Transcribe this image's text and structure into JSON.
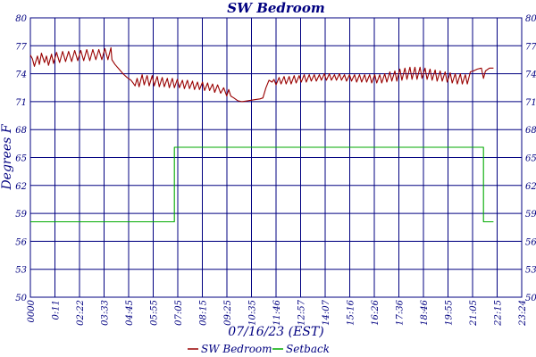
{
  "chart_data": {
    "type": "line",
    "title": "SW Bedroom",
    "xlabel": "07/16/23 (EST)",
    "ylabel": "Degrees F",
    "ylim": [
      50,
      80
    ],
    "y_ticks": [
      "50",
      "53",
      "56",
      "59",
      "62",
      "65",
      "68",
      "71",
      "74",
      "77",
      "80"
    ],
    "x_ticks": [
      "0000",
      "0:11",
      "02:22",
      "03:33",
      "04:45",
      "05:55",
      "07:05",
      "08:15",
      "09:25",
      "10:35",
      "11:46",
      "12:57",
      "14:07",
      "15:16",
      "16:26",
      "17:36",
      "18:46",
      "19:55",
      "21:05",
      "22:15",
      "23:24"
    ],
    "x_unit": "hours",
    "xlim": [
      0,
      24.4
    ],
    "grid": true,
    "legend_position": "bottom",
    "series": [
      {
        "name": "SW Bedroom",
        "color": "#990000",
        "points": [
          [
            0.0,
            76.0
          ],
          [
            0.1,
            75.6
          ],
          [
            0.2,
            74.8
          ],
          [
            0.35,
            75.9
          ],
          [
            0.45,
            75.0
          ],
          [
            0.55,
            76.2
          ],
          [
            0.7,
            75.2
          ],
          [
            0.8,
            75.9
          ],
          [
            0.9,
            74.9
          ],
          [
            1.05,
            76.1
          ],
          [
            1.15,
            75.1
          ],
          [
            1.3,
            76.3
          ],
          [
            1.45,
            75.2
          ],
          [
            1.6,
            76.4
          ],
          [
            1.75,
            75.3
          ],
          [
            1.9,
            76.4
          ],
          [
            2.05,
            75.3
          ],
          [
            2.2,
            76.5
          ],
          [
            2.35,
            75.4
          ],
          [
            2.5,
            76.5
          ],
          [
            2.65,
            75.4
          ],
          [
            2.8,
            76.6
          ],
          [
            2.95,
            75.4
          ],
          [
            3.1,
            76.6
          ],
          [
            3.25,
            75.5
          ],
          [
            3.4,
            76.6
          ],
          [
            3.55,
            75.5
          ],
          [
            3.7,
            76.7
          ],
          [
            3.85,
            75.5
          ],
          [
            4.0,
            76.8
          ],
          [
            4.05,
            75.5
          ],
          [
            4.2,
            75.0
          ],
          [
            4.4,
            74.5
          ],
          [
            4.6,
            74.0
          ],
          [
            4.8,
            73.6
          ],
          [
            5.0,
            73.3
          ],
          [
            5.1,
            73.0
          ],
          [
            5.2,
            72.7
          ],
          [
            5.3,
            73.5
          ],
          [
            5.4,
            72.6
          ],
          [
            5.55,
            73.9
          ],
          [
            5.65,
            72.8
          ],
          [
            5.8,
            73.8
          ],
          [
            5.9,
            72.7
          ],
          [
            6.05,
            73.8
          ],
          [
            6.15,
            72.7
          ],
          [
            6.3,
            73.7
          ],
          [
            6.4,
            72.6
          ],
          [
            6.55,
            73.6
          ],
          [
            6.65,
            72.6
          ],
          [
            6.8,
            73.5
          ],
          [
            6.9,
            72.5
          ],
          [
            7.05,
            73.5
          ],
          [
            7.15,
            72.5
          ],
          [
            7.3,
            73.4
          ],
          [
            7.4,
            72.5
          ],
          [
            7.55,
            73.3
          ],
          [
            7.65,
            72.4
          ],
          [
            7.8,
            73.3
          ],
          [
            7.9,
            72.4
          ],
          [
            8.05,
            73.2
          ],
          [
            8.15,
            72.3
          ],
          [
            8.3,
            73.1
          ],
          [
            8.4,
            72.3
          ],
          [
            8.55,
            73.1
          ],
          [
            8.65,
            72.2
          ],
          [
            8.8,
            73.0
          ],
          [
            8.9,
            72.2
          ],
          [
            9.05,
            72.9
          ],
          [
            9.15,
            72.0
          ],
          [
            9.3,
            72.8
          ],
          [
            9.45,
            71.9
          ],
          [
            9.6,
            72.5
          ],
          [
            9.75,
            71.6
          ],
          [
            9.85,
            72.3
          ],
          [
            9.95,
            71.6
          ],
          [
            10.1,
            71.4
          ],
          [
            10.3,
            71.1
          ],
          [
            10.5,
            71.0
          ],
          [
            10.8,
            71.1
          ],
          [
            11.1,
            71.2
          ],
          [
            11.4,
            71.3
          ],
          [
            11.55,
            71.4
          ],
          [
            11.7,
            72.5
          ],
          [
            11.85,
            73.3
          ],
          [
            12.0,
            73.1
          ],
          [
            12.1,
            73.4
          ],
          [
            12.2,
            72.8
          ],
          [
            12.35,
            73.6
          ],
          [
            12.45,
            72.9
          ],
          [
            12.6,
            73.7
          ],
          [
            12.7,
            72.9
          ],
          [
            12.85,
            73.7
          ],
          [
            12.95,
            72.9
          ],
          [
            13.1,
            73.8
          ],
          [
            13.2,
            73.0
          ],
          [
            13.35,
            73.8
          ],
          [
            13.45,
            73.1
          ],
          [
            13.6,
            73.9
          ],
          [
            13.7,
            73.1
          ],
          [
            13.85,
            73.9
          ],
          [
            13.95,
            73.2
          ],
          [
            14.1,
            73.9
          ],
          [
            14.2,
            73.2
          ],
          [
            14.35,
            73.9
          ],
          [
            14.45,
            73.3
          ],
          [
            14.6,
            74.0
          ],
          [
            14.7,
            73.3
          ],
          [
            14.85,
            74.0
          ],
          [
            14.95,
            73.3
          ],
          [
            15.1,
            73.9
          ],
          [
            15.2,
            73.3
          ],
          [
            15.35,
            74.0
          ],
          [
            15.45,
            73.3
          ],
          [
            15.6,
            73.9
          ],
          [
            15.7,
            73.2
          ],
          [
            15.85,
            73.9
          ],
          [
            15.95,
            73.2
          ],
          [
            16.1,
            73.9
          ],
          [
            16.2,
            73.1
          ],
          [
            16.35,
            73.9
          ],
          [
            16.45,
            73.1
          ],
          [
            16.6,
            73.9
          ],
          [
            16.7,
            73.1
          ],
          [
            16.85,
            73.9
          ],
          [
            16.95,
            73.0
          ],
          [
            17.1,
            73.9
          ],
          [
            17.2,
            73.0
          ],
          [
            17.35,
            73.9
          ],
          [
            17.45,
            73.0
          ],
          [
            17.6,
            74.0
          ],
          [
            17.7,
            73.1
          ],
          [
            17.85,
            74.2
          ],
          [
            17.95,
            73.2
          ],
          [
            18.1,
            74.3
          ],
          [
            18.2,
            73.2
          ],
          [
            18.35,
            74.5
          ],
          [
            18.45,
            73.3
          ],
          [
            18.6,
            74.6
          ],
          [
            18.7,
            73.4
          ],
          [
            18.85,
            74.7
          ],
          [
            18.95,
            73.4
          ],
          [
            19.1,
            74.7
          ],
          [
            19.2,
            73.4
          ],
          [
            19.35,
            74.7
          ],
          [
            19.45,
            73.5
          ],
          [
            19.6,
            74.6
          ],
          [
            19.7,
            73.4
          ],
          [
            19.85,
            74.5
          ],
          [
            19.95,
            73.3
          ],
          [
            20.1,
            74.4
          ],
          [
            20.2,
            73.2
          ],
          [
            20.35,
            74.3
          ],
          [
            20.45,
            73.2
          ],
          [
            20.6,
            74.2
          ],
          [
            20.7,
            73.1
          ],
          [
            20.85,
            74.1
          ],
          [
            20.95,
            73.0
          ],
          [
            21.1,
            74.0
          ],
          [
            21.2,
            72.9
          ],
          [
            21.35,
            74.0
          ],
          [
            21.45,
            72.9
          ],
          [
            21.6,
            73.9
          ],
          [
            21.7,
            72.9
          ],
          [
            21.85,
            74.2
          ],
          [
            22.0,
            74.3
          ],
          [
            22.2,
            74.5
          ],
          [
            22.4,
            74.6
          ],
          [
            22.5,
            73.5
          ],
          [
            22.6,
            74.3
          ],
          [
            22.8,
            74.6
          ],
          [
            23.0,
            74.6
          ]
        ]
      },
      {
        "name": "Setback",
        "color": "#00aa00",
        "points": [
          [
            0.0,
            58.1
          ],
          [
            7.15,
            58.1
          ],
          [
            7.15,
            66.1
          ],
          [
            22.5,
            66.1
          ],
          [
            22.5,
            58.1
          ],
          [
            23.0,
            58.1
          ]
        ]
      }
    ]
  }
}
